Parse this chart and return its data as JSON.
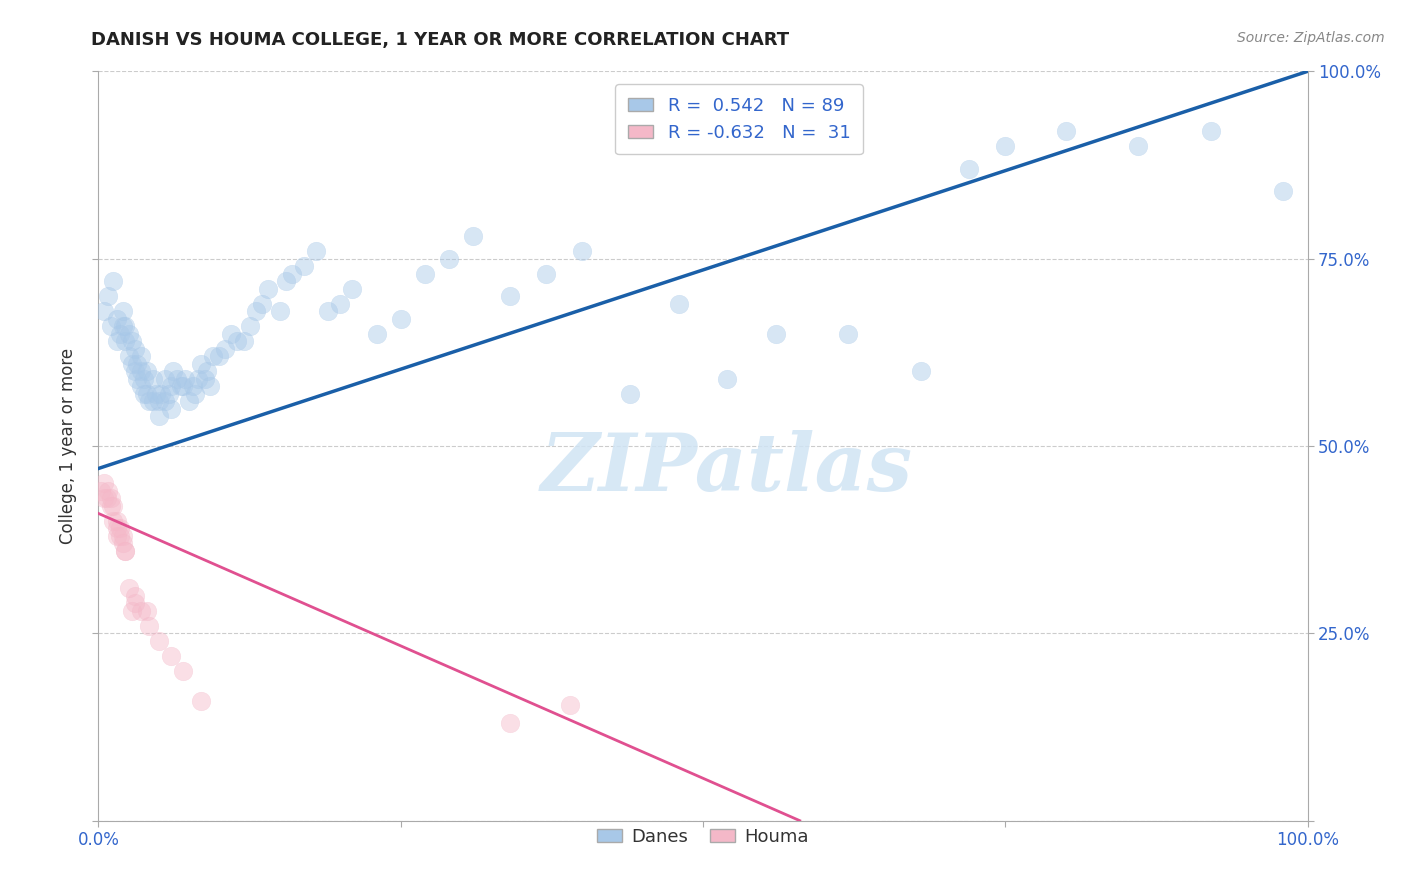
{
  "title": "DANISH VS HOUMA COLLEGE, 1 YEAR OR MORE CORRELATION CHART",
  "source": "Source: ZipAtlas.com",
  "ylabel": "College, 1 year or more",
  "danes_R": 0.542,
  "danes_N": 89,
  "houma_R": -0.632,
  "houma_N": 31,
  "blue_color": "#a8c8e8",
  "blue_line_color": "#1a5fa8",
  "pink_color": "#f4b8c8",
  "pink_line_color": "#e05090",
  "legend_box_blue": "#a8c8e8",
  "legend_box_pink": "#f4b8c8",
  "watermark_color": "#d0e4f4",
  "background_color": "#ffffff",
  "grid_color": "#cccccc",
  "tick_color": "#3366cc",
  "title_color": "#222222",
  "source_color": "#888888",
  "ylabel_color": "#333333",
  "danes_x": [
    0.005,
    0.008,
    0.01,
    0.012,
    0.015,
    0.015,
    0.018,
    0.02,
    0.02,
    0.022,
    0.022,
    0.025,
    0.025,
    0.028,
    0.028,
    0.03,
    0.03,
    0.032,
    0.032,
    0.035,
    0.035,
    0.035,
    0.038,
    0.038,
    0.04,
    0.04,
    0.042,
    0.045,
    0.045,
    0.048,
    0.05,
    0.05,
    0.052,
    0.055,
    0.055,
    0.058,
    0.06,
    0.06,
    0.062,
    0.065,
    0.068,
    0.07,
    0.072,
    0.075,
    0.078,
    0.08,
    0.082,
    0.085,
    0.088,
    0.09,
    0.092,
    0.095,
    0.1,
    0.105,
    0.11,
    0.115,
    0.12,
    0.125,
    0.13,
    0.135,
    0.14,
    0.15,
    0.155,
    0.16,
    0.17,
    0.18,
    0.19,
    0.2,
    0.21,
    0.23,
    0.25,
    0.27,
    0.29,
    0.31,
    0.34,
    0.37,
    0.4,
    0.44,
    0.48,
    0.52,
    0.56,
    0.62,
    0.68,
    0.72,
    0.75,
    0.8,
    0.86,
    0.92,
    0.98
  ],
  "danes_y": [
    0.68,
    0.7,
    0.66,
    0.72,
    0.64,
    0.67,
    0.65,
    0.66,
    0.68,
    0.64,
    0.66,
    0.62,
    0.65,
    0.61,
    0.64,
    0.6,
    0.63,
    0.61,
    0.59,
    0.58,
    0.6,
    0.62,
    0.57,
    0.59,
    0.57,
    0.6,
    0.56,
    0.56,
    0.59,
    0.57,
    0.54,
    0.56,
    0.57,
    0.56,
    0.59,
    0.57,
    0.55,
    0.58,
    0.6,
    0.59,
    0.58,
    0.58,
    0.59,
    0.56,
    0.58,
    0.57,
    0.59,
    0.61,
    0.59,
    0.6,
    0.58,
    0.62,
    0.62,
    0.63,
    0.65,
    0.64,
    0.64,
    0.66,
    0.68,
    0.69,
    0.71,
    0.68,
    0.72,
    0.73,
    0.74,
    0.76,
    0.68,
    0.69,
    0.71,
    0.65,
    0.67,
    0.73,
    0.75,
    0.78,
    0.7,
    0.73,
    0.76,
    0.57,
    0.69,
    0.59,
    0.65,
    0.65,
    0.6,
    0.87,
    0.9,
    0.92,
    0.9,
    0.92,
    0.84
  ],
  "houma_x": [
    0.002,
    0.005,
    0.005,
    0.007,
    0.008,
    0.01,
    0.01,
    0.012,
    0.012,
    0.015,
    0.015,
    0.015,
    0.018,
    0.018,
    0.02,
    0.02,
    0.022,
    0.022,
    0.025,
    0.028,
    0.03,
    0.03,
    0.035,
    0.04,
    0.042,
    0.05,
    0.06,
    0.07,
    0.085,
    0.34,
    0.39
  ],
  "houma_y": [
    0.44,
    0.43,
    0.45,
    0.43,
    0.44,
    0.43,
    0.42,
    0.42,
    0.4,
    0.4,
    0.39,
    0.38,
    0.39,
    0.38,
    0.38,
    0.37,
    0.36,
    0.36,
    0.31,
    0.28,
    0.29,
    0.3,
    0.28,
    0.28,
    0.26,
    0.24,
    0.22,
    0.2,
    0.16,
    0.13,
    0.155
  ],
  "danes_line_x": [
    0.0,
    1.0
  ],
  "danes_line_y": [
    0.47,
    1.0
  ],
  "houma_line_x": [
    0.0,
    0.58
  ],
  "houma_line_y": [
    0.41,
    0.0
  ],
  "xlim": [
    0.0,
    1.0
  ],
  "ylim": [
    0.0,
    1.0
  ],
  "xticks": [
    0.0,
    0.25,
    0.5,
    0.75,
    1.0
  ],
  "xticklabels": [
    "0.0%",
    "",
    "",
    "",
    "100.0%"
  ],
  "yticks": [
    0.0,
    0.25,
    0.5,
    0.75,
    1.0
  ],
  "ytick_right_labels": [
    "",
    "25.0%",
    "50.0%",
    "75.0%",
    "100.0%"
  ],
  "dot_size": 180,
  "dot_alpha": 0.45
}
